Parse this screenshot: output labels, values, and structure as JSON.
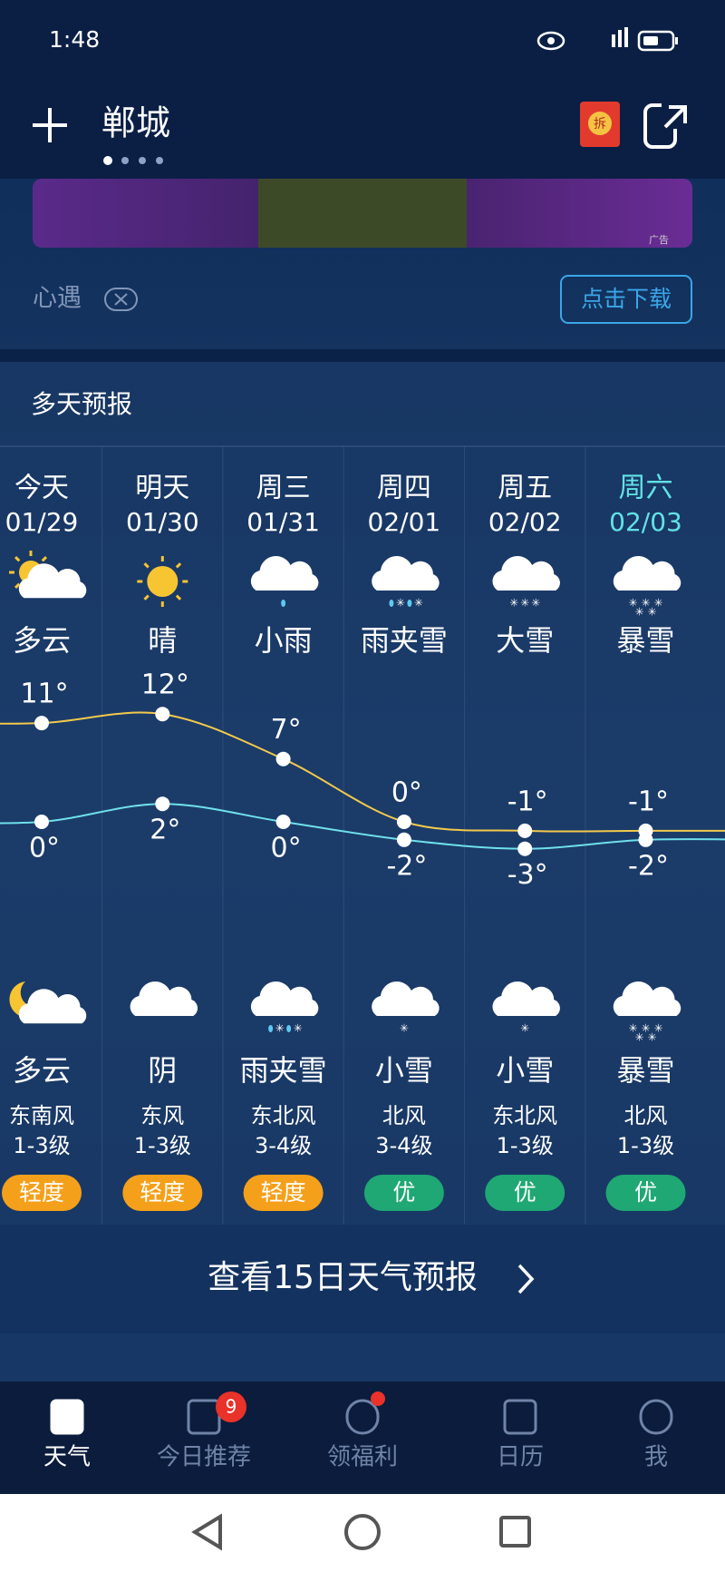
{
  "status": {
    "time": "1:48"
  },
  "header": {
    "city": "郸城",
    "badge": "拆"
  },
  "ad": {
    "name": "心遇",
    "button": "点击下载",
    "tag": "广告"
  },
  "forecast": {
    "title": "多天预报",
    "more": "查看15日天气预报",
    "days": [
      {
        "day": "今天",
        "date": "01/29",
        "day_weather": "多云",
        "high": {
          "value": 11,
          "label": "11°"
        },
        "low": {
          "value": 0,
          "label": "0°"
        },
        "night_weather": "多云",
        "wind_dir": "东南风",
        "wind_level": "1-3级",
        "aqi": "轻度",
        "aqi_color": "#f5a01a"
      },
      {
        "day": "明天",
        "date": "01/30",
        "day_weather": "晴",
        "high": {
          "value": 12,
          "label": "12°"
        },
        "low": {
          "value": 2,
          "label": "2°"
        },
        "night_weather": "阴",
        "wind_dir": "东风",
        "wind_level": "1-3级",
        "aqi": "轻度",
        "aqi_color": "#f5a01a"
      },
      {
        "day": "周三",
        "date": "01/31",
        "day_weather": "小雨",
        "high": {
          "value": 7,
          "label": "7°"
        },
        "low": {
          "value": 0,
          "label": "0°"
        },
        "night_weather": "雨夹雪",
        "wind_dir": "东北风",
        "wind_level": "3-4级",
        "aqi": "轻度",
        "aqi_color": "#f5a01a"
      },
      {
        "day": "周四",
        "date": "02/01",
        "day_weather": "雨夹雪",
        "high": {
          "value": 0,
          "label": "0°"
        },
        "low": {
          "value": -2,
          "label": "-2°"
        },
        "night_weather": "小雪",
        "wind_dir": "北风",
        "wind_level": "3-4级",
        "aqi": "优",
        "aqi_color": "#1fa873"
      },
      {
        "day": "周五",
        "date": "02/02",
        "day_weather": "大雪",
        "high": {
          "value": -1,
          "label": "-1°"
        },
        "low": {
          "value": -3,
          "label": "-3°"
        },
        "night_weather": "小雪",
        "wind_dir": "东北风",
        "wind_level": "1-3级",
        "aqi": "优",
        "aqi_color": "#1fa873"
      },
      {
        "day": "周六",
        "date": "02/03",
        "day_weather": "暴雪",
        "high": {
          "value": -1,
          "label": "-1°"
        },
        "low": {
          "value": -2,
          "label": "-2°"
        },
        "night_weather": "暴雪",
        "wind_dir": "北风",
        "wind_level": "1-3级",
        "aqi": "优",
        "aqi_color": "#1fa873",
        "color": "#62e2e6"
      }
    ],
    "high_color": "#f2c94c",
    "low_color": "#6fe0ea"
  },
  "nav": {
    "items": [
      {
        "label": "天气"
      },
      {
        "label": "今日推荐",
        "badge": "9"
      },
      {
        "label": "领福利"
      },
      {
        "label": "日历"
      },
      {
        "label": "我"
      }
    ]
  }
}
